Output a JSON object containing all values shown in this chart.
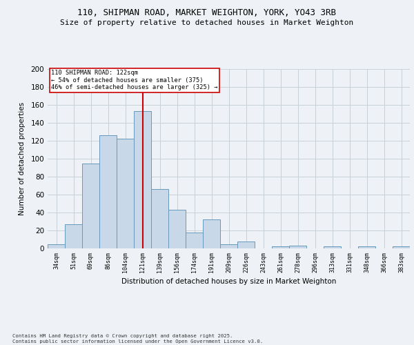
{
  "title1": "110, SHIPMAN ROAD, MARKET WEIGHTON, YORK, YO43 3RB",
  "title2": "Size of property relative to detached houses in Market Weighton",
  "xlabel": "Distribution of detached houses by size in Market Weighton",
  "ylabel": "Number of detached properties",
  "bar_labels": [
    "34sqm",
    "51sqm",
    "69sqm",
    "86sqm",
    "104sqm",
    "121sqm",
    "139sqm",
    "156sqm",
    "174sqm",
    "191sqm",
    "209sqm",
    "226sqm",
    "243sqm",
    "261sqm",
    "278sqm",
    "296sqm",
    "313sqm",
    "331sqm",
    "348sqm",
    "366sqm",
    "383sqm"
  ],
  "bar_values": [
    5,
    27,
    95,
    126,
    122,
    153,
    66,
    43,
    18,
    32,
    5,
    8,
    0,
    2,
    3,
    0,
    2,
    0,
    2,
    0,
    2
  ],
  "bar_color": "#c8d8e8",
  "bar_edge_color": "#6699bb",
  "ylim": [
    0,
    200
  ],
  "yticks": [
    0,
    20,
    40,
    60,
    80,
    100,
    120,
    140,
    160,
    180,
    200
  ],
  "property_bin_index": 5,
  "vline_color": "#cc0000",
  "annotation_text": "110 SHIPMAN ROAD: 122sqm\n← 54% of detached houses are smaller (375)\n46% of semi-detached houses are larger (325) →",
  "annotation_box_color": "#cc0000",
  "footer_text": "Contains HM Land Registry data © Crown copyright and database right 2025.\nContains public sector information licensed under the Open Government Licence v3.0.",
  "bg_color": "#eef2f6",
  "grid_color": "#c8d0d8"
}
